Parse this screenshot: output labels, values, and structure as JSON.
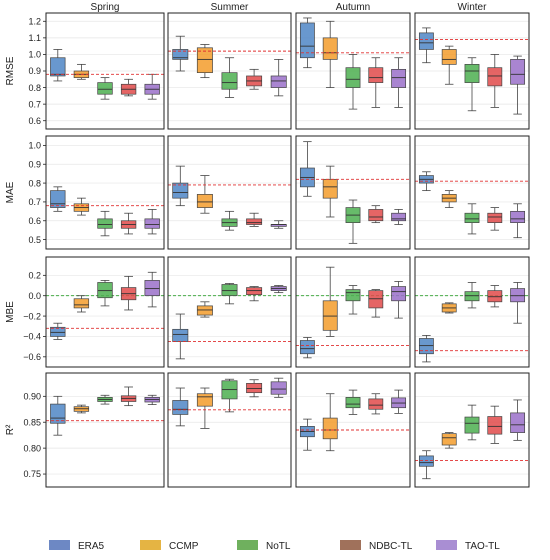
{
  "colors": {
    "ERA5": "#4f86c6",
    "CCMP": "#f39c2b",
    "NoTL": "#4caf50",
    "NDBC-TL": "#e04a4a",
    "TAO-TL": "#9a70c9",
    "ref_line": "#e03030",
    "zero_line": "#2ca02c"
  },
  "legend": {
    "placement": "bottom",
    "entries": [
      {
        "name": "ERA5",
        "swatch": "#6d88c4"
      },
      {
        "name": "CCMP",
        "swatch": "#e5b443"
      },
      {
        "name": "NoTL",
        "swatch": "#6fb05e"
      },
      {
        "name": "NDBC-TL",
        "swatch": "#a0715b"
      },
      {
        "name": "TAO-TL",
        "swatch": "#a98ed3"
      }
    ]
  },
  "chart_data": {
    "type": "box",
    "seasons": [
      "Spring",
      "Summer",
      "Autumn",
      "Winter"
    ],
    "models": [
      "ERA5",
      "CCMP",
      "NoTL",
      "NDBC-TL",
      "TAO-TL"
    ],
    "grid": true,
    "rows": [
      {
        "metric": "RMSE",
        "ylim": [
          0.55,
          1.25
        ],
        "yticks": [
          0.6,
          0.7,
          0.8,
          0.9,
          1.0,
          1.1,
          1.2
        ],
        "tick_labels": [
          "0.6",
          "0.7",
          "0.8",
          "0.9",
          "1.0",
          "1.1",
          "1.2"
        ],
        "data": [
          {
            "ref": 0.88,
            "boxes": [
              {
                "min": 0.84,
                "q1": 0.87,
                "med": 0.88,
                "q3": 0.98,
                "max": 1.03
              },
              {
                "min": 0.85,
                "q1": 0.86,
                "med": 0.88,
                "q3": 0.9,
                "max": 0.94
              },
              {
                "min": 0.73,
                "q1": 0.76,
                "med": 0.79,
                "q3": 0.83,
                "max": 0.86
              },
              {
                "min": 0.75,
                "q1": 0.76,
                "med": 0.79,
                "q3": 0.82,
                "max": 0.85
              },
              {
                "min": 0.73,
                "q1": 0.76,
                "med": 0.79,
                "q3": 0.82,
                "max": 0.88
              }
            ]
          },
          {
            "ref": 1.02,
            "boxes": [
              {
                "min": 0.9,
                "q1": 0.97,
                "med": 0.98,
                "q3": 1.03,
                "max": 1.11
              },
              {
                "min": 0.86,
                "q1": 0.89,
                "med": 0.97,
                "q3": 1.04,
                "max": 1.06
              },
              {
                "min": 0.74,
                "q1": 0.79,
                "med": 0.83,
                "q3": 0.89,
                "max": 0.98
              },
              {
                "min": 0.79,
                "q1": 0.81,
                "med": 0.84,
                "q3": 0.87,
                "max": 0.91
              },
              {
                "min": 0.75,
                "q1": 0.8,
                "med": 0.84,
                "q3": 0.87,
                "max": 0.97
              }
            ]
          },
          {
            "ref": 1.01,
            "boxes": [
              {
                "min": 0.92,
                "q1": 0.98,
                "med": 1.05,
                "q3": 1.19,
                "max": 1.22
              },
              {
                "min": 0.8,
                "q1": 0.97,
                "med": 1.01,
                "q3": 1.1,
                "max": 1.2
              },
              {
                "min": 0.67,
                "q1": 0.8,
                "med": 0.85,
                "q3": 0.92,
                "max": 1.0
              },
              {
                "min": 0.68,
                "q1": 0.83,
                "med": 0.86,
                "q3": 0.92,
                "max": 0.98
              },
              {
                "min": 0.68,
                "q1": 0.8,
                "med": 0.86,
                "q3": 0.91,
                "max": 0.98
              }
            ]
          },
          {
            "ref": 1.09,
            "boxes": [
              {
                "min": 0.95,
                "q1": 1.03,
                "med": 1.07,
                "q3": 1.13,
                "max": 1.16
              },
              {
                "min": 0.82,
                "q1": 0.94,
                "med": 0.97,
                "q3": 1.03,
                "max": 1.05
              },
              {
                "min": 0.66,
                "q1": 0.83,
                "med": 0.9,
                "q3": 0.94,
                "max": 0.98
              },
              {
                "min": 0.68,
                "q1": 0.81,
                "med": 0.87,
                "q3": 0.92,
                "max": 1.0
              },
              {
                "min": 0.64,
                "q1": 0.82,
                "med": 0.88,
                "q3": 0.97,
                "max": 0.99
              }
            ]
          }
        ]
      },
      {
        "metric": "MAE",
        "ylim": [
          0.45,
          1.05
        ],
        "yticks": [
          0.5,
          0.6,
          0.7,
          0.8,
          0.9,
          1.0
        ],
        "tick_labels": [
          "0.5",
          "0.6",
          "0.7",
          "0.8",
          "0.9",
          "1.0"
        ],
        "data": [
          {
            "ref": 0.68,
            "boxes": [
              {
                "min": 0.65,
                "q1": 0.67,
                "med": 0.69,
                "q3": 0.76,
                "max": 0.78
              },
              {
                "min": 0.63,
                "q1": 0.65,
                "med": 0.67,
                "q3": 0.69,
                "max": 0.72
              },
              {
                "min": 0.52,
                "q1": 0.56,
                "med": 0.58,
                "q3": 0.61,
                "max": 0.65
              },
              {
                "min": 0.53,
                "q1": 0.56,
                "med": 0.58,
                "q3": 0.6,
                "max": 0.64
              },
              {
                "min": 0.53,
                "q1": 0.56,
                "med": 0.58,
                "q3": 0.61,
                "max": 0.66
              }
            ]
          },
          {
            "ref": 0.79,
            "boxes": [
              {
                "min": 0.68,
                "q1": 0.72,
                "med": 0.75,
                "q3": 0.8,
                "max": 0.89
              },
              {
                "min": 0.64,
                "q1": 0.67,
                "med": 0.7,
                "q3": 0.74,
                "max": 0.84
              },
              {
                "min": 0.55,
                "q1": 0.57,
                "med": 0.59,
                "q3": 0.61,
                "max": 0.65
              },
              {
                "min": 0.57,
                "q1": 0.58,
                "med": 0.59,
                "q3": 0.61,
                "max": 0.64
              },
              {
                "min": 0.56,
                "q1": 0.57,
                "med": 0.58,
                "q3": 0.58,
                "max": 0.6
              }
            ]
          },
          {
            "ref": 0.82,
            "boxes": [
              {
                "min": 0.73,
                "q1": 0.78,
                "med": 0.83,
                "q3": 0.88,
                "max": 1.02
              },
              {
                "min": 0.62,
                "q1": 0.72,
                "med": 0.78,
                "q3": 0.82,
                "max": 0.89
              },
              {
                "min": 0.48,
                "q1": 0.59,
                "med": 0.63,
                "q3": 0.67,
                "max": 0.71
              },
              {
                "min": 0.59,
                "q1": 0.6,
                "med": 0.62,
                "q3": 0.66,
                "max": 0.68
              },
              {
                "min": 0.58,
                "q1": 0.6,
                "med": 0.61,
                "q3": 0.64,
                "max": 0.66
              }
            ]
          },
          {
            "ref": 0.81,
            "boxes": [
              {
                "min": 0.76,
                "q1": 0.8,
                "med": 0.82,
                "q3": 0.84,
                "max": 0.86
              },
              {
                "min": 0.67,
                "q1": 0.7,
                "med": 0.72,
                "q3": 0.74,
                "max": 0.76
              },
              {
                "min": 0.53,
                "q1": 0.59,
                "med": 0.61,
                "q3": 0.64,
                "max": 0.69
              },
              {
                "min": 0.55,
                "q1": 0.59,
                "med": 0.62,
                "q3": 0.64,
                "max": 0.67
              },
              {
                "min": 0.51,
                "q1": 0.59,
                "med": 0.61,
                "q3": 0.65,
                "max": 0.69
              }
            ]
          }
        ]
      },
      {
        "metric": "MBE",
        "ylim": [
          -0.7,
          0.38
        ],
        "yticks": [
          -0.6,
          -0.4,
          -0.2,
          0.0,
          0.2
        ],
        "tick_labels": [
          "−0.6",
          "−0.4",
          "−0.2",
          "0.0",
          "0.2"
        ],
        "zero_line": true,
        "data": [
          {
            "ref": -0.32,
            "boxes": [
              {
                "min": -0.43,
                "q1": -0.4,
                "med": -0.36,
                "q3": -0.31,
                "max": -0.27
              },
              {
                "min": -0.16,
                "q1": -0.12,
                "med": -0.09,
                "q3": -0.03,
                "max": 0.0
              },
              {
                "min": -0.1,
                "q1": -0.02,
                "med": 0.05,
                "q3": 0.13,
                "max": 0.15
              },
              {
                "min": -0.14,
                "q1": -0.04,
                "med": 0.02,
                "q3": 0.08,
                "max": 0.19
              },
              {
                "min": -0.11,
                "q1": 0.0,
                "med": 0.07,
                "q3": 0.15,
                "max": 0.23
              }
            ]
          },
          {
            "ref": -0.45,
            "boxes": [
              {
                "min": -0.62,
                "q1": -0.45,
                "med": -0.38,
                "q3": -0.33,
                "max": -0.18
              },
              {
                "min": -0.21,
                "q1": -0.19,
                "med": -0.14,
                "q3": -0.1,
                "max": -0.06
              },
              {
                "min": -0.08,
                "q1": 0.0,
                "med": 0.05,
                "q3": 0.11,
                "max": 0.12
              },
              {
                "min": -0.05,
                "q1": 0.01,
                "med": 0.05,
                "q3": 0.08,
                "max": 0.09
              },
              {
                "min": 0.03,
                "q1": 0.05,
                "med": 0.07,
                "q3": 0.09,
                "max": 0.1
              }
            ]
          },
          {
            "ref": -0.49,
            "boxes": [
              {
                "min": -0.61,
                "q1": -0.57,
                "med": -0.52,
                "q3": -0.44,
                "max": -0.41
              },
              {
                "min": -0.4,
                "q1": -0.34,
                "med": -0.2,
                "q3": -0.05,
                "max": 0.28
              },
              {
                "min": -0.18,
                "q1": -0.05,
                "med": 0.03,
                "q3": 0.06,
                "max": 0.1
              },
              {
                "min": -0.21,
                "q1": -0.12,
                "med": -0.03,
                "q3": 0.05,
                "max": 0.06
              },
              {
                "min": -0.22,
                "q1": -0.05,
                "med": 0.04,
                "q3": 0.09,
                "max": 0.14
              }
            ]
          },
          {
            "ref": -0.54,
            "boxes": [
              {
                "min": -0.65,
                "q1": -0.57,
                "med": -0.49,
                "q3": -0.42,
                "max": -0.39
              },
              {
                "min": -0.17,
                "q1": -0.16,
                "med": -0.12,
                "q3": -0.08,
                "max": -0.07
              },
              {
                "min": -0.12,
                "q1": -0.05,
                "med": 0.0,
                "q3": 0.04,
                "max": 0.13
              },
              {
                "min": -0.11,
                "q1": -0.06,
                "med": -0.01,
                "q3": 0.05,
                "max": 0.1
              },
              {
                "min": -0.27,
                "q1": -0.06,
                "med": 0.0,
                "q3": 0.07,
                "max": 0.13
              }
            ]
          }
        ]
      },
      {
        "metric": "R²",
        "ylim": [
          0.725,
          0.945
        ],
        "yticks": [
          0.75,
          0.8,
          0.85,
          0.9
        ],
        "tick_labels": [
          "0.75",
          "0.80",
          "0.85",
          "0.90"
        ],
        "data": [
          {
            "ref": 0.853,
            "boxes": [
              {
                "min": 0.825,
                "q1": 0.848,
                "med": 0.858,
                "q3": 0.885,
                "max": 0.9
              },
              {
                "min": 0.868,
                "q1": 0.871,
                "med": 0.876,
                "q3": 0.88,
                "max": 0.883
              },
              {
                "min": 0.885,
                "q1": 0.89,
                "med": 0.894,
                "q3": 0.898,
                "max": 0.902
              },
              {
                "min": 0.882,
                "q1": 0.89,
                "med": 0.896,
                "q3": 0.901,
                "max": 0.918
              },
              {
                "min": 0.884,
                "q1": 0.889,
                "med": 0.894,
                "q3": 0.898,
                "max": 0.902
              }
            ]
          },
          {
            "ref": 0.874,
            "boxes": [
              {
                "min": 0.843,
                "q1": 0.865,
                "med": 0.875,
                "q3": 0.892,
                "max": 0.916
              },
              {
                "min": 0.838,
                "q1": 0.881,
                "med": 0.899,
                "q3": 0.905,
                "max": 0.916
              },
              {
                "min": 0.87,
                "q1": 0.895,
                "med": 0.913,
                "q3": 0.93,
                "max": 0.933
              },
              {
                "min": 0.899,
                "q1": 0.907,
                "med": 0.915,
                "q3": 0.925,
                "max": 0.932
              },
              {
                "min": 0.898,
                "q1": 0.904,
                "med": 0.914,
                "q3": 0.928,
                "max": 0.935
              }
            ]
          },
          {
            "ref": 0.835,
            "boxes": [
              {
                "min": 0.796,
                "q1": 0.822,
                "med": 0.832,
                "q3": 0.842,
                "max": 0.856
              },
              {
                "min": 0.795,
                "q1": 0.818,
                "med": 0.835,
                "q3": 0.858,
                "max": 0.905
              },
              {
                "min": 0.865,
                "q1": 0.878,
                "med": 0.885,
                "q3": 0.898,
                "max": 0.912
              },
              {
                "min": 0.866,
                "q1": 0.875,
                "med": 0.883,
                "q3": 0.895,
                "max": 0.905
              },
              {
                "min": 0.867,
                "q1": 0.878,
                "med": 0.887,
                "q3": 0.897,
                "max": 0.912
              }
            ]
          },
          {
            "ref": 0.776,
            "boxes": [
              {
                "min": 0.741,
                "q1": 0.765,
                "med": 0.772,
                "q3": 0.785,
                "max": 0.795
              },
              {
                "min": 0.8,
                "q1": 0.806,
                "med": 0.82,
                "q3": 0.828,
                "max": 0.83
              },
              {
                "min": 0.816,
                "q1": 0.829,
                "med": 0.848,
                "q3": 0.86,
                "max": 0.883
              },
              {
                "min": 0.809,
                "q1": 0.827,
                "med": 0.842,
                "q3": 0.861,
                "max": 0.881
              },
              {
                "min": 0.815,
                "q1": 0.83,
                "med": 0.845,
                "q3": 0.868,
                "max": 0.893
              }
            ]
          }
        ]
      }
    ]
  }
}
